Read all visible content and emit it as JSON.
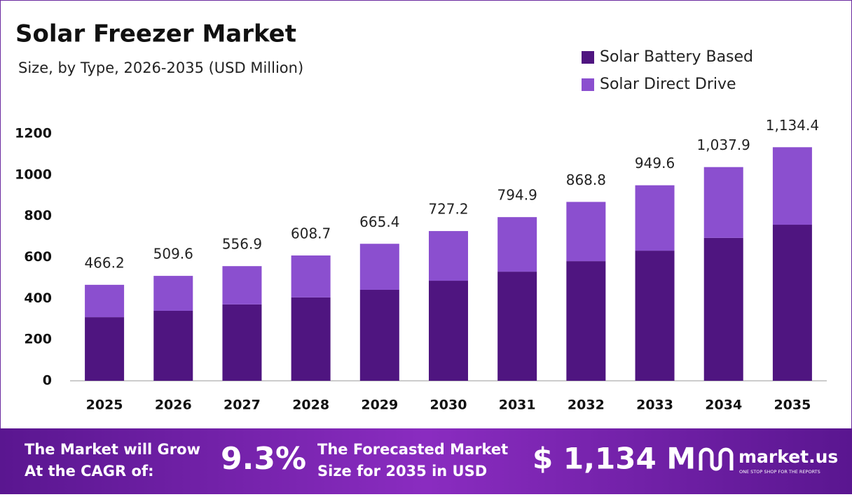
{
  "chart_data": {
    "type": "stacked_bar",
    "title": "Solar Freezer Market",
    "subtitle": "Size, by Type, 2026-2035 (USD Million)",
    "categories": [
      "2025",
      "2026",
      "2027",
      "2028",
      "2029",
      "2030",
      "2031",
      "2032",
      "2033",
      "2034",
      "2035"
    ],
    "series": [
      {
        "name": "Solar Battery Based",
        "color": "#4f1580",
        "values": [
          309,
          340,
          371,
          405,
          442,
          486,
          530,
          581,
          632,
          694,
          758
        ]
      },
      {
        "name": "Solar Direct Drive",
        "color": "#8b4fcf",
        "values": [
          157.2,
          169.6,
          185.9,
          203.7,
          223.4,
          241.2,
          264.9,
          287.8,
          317.6,
          343.9,
          376.4
        ]
      }
    ],
    "totals": [
      466.2,
      509.6,
      556.9,
      608.7,
      665.4,
      727.2,
      794.9,
      868.8,
      949.6,
      1037.9,
      1134.4
    ],
    "total_labels": [
      "466.2",
      "509.6",
      "556.9",
      "608.7",
      "665.4",
      "727.2",
      "794.9",
      "868.8",
      "949.6",
      "1,037.9",
      "1,134.4"
    ],
    "ylim": [
      0,
      1200
    ],
    "yticks": [
      0,
      200,
      400,
      600,
      800,
      1000,
      1200
    ],
    "grid": false,
    "legend": "top-right"
  },
  "footer": {
    "cagr_text": [
      "The Market will Grow",
      "At the CAGR of:"
    ],
    "cagr": "9.3%",
    "forecast_text": [
      "The Forecasted Market",
      "Size for 2035 in USD"
    ],
    "forecast": "$ 1,134 M",
    "brand": "market.us",
    "tagline": "ONE STOP SHOP FOR THE REPORTS"
  }
}
